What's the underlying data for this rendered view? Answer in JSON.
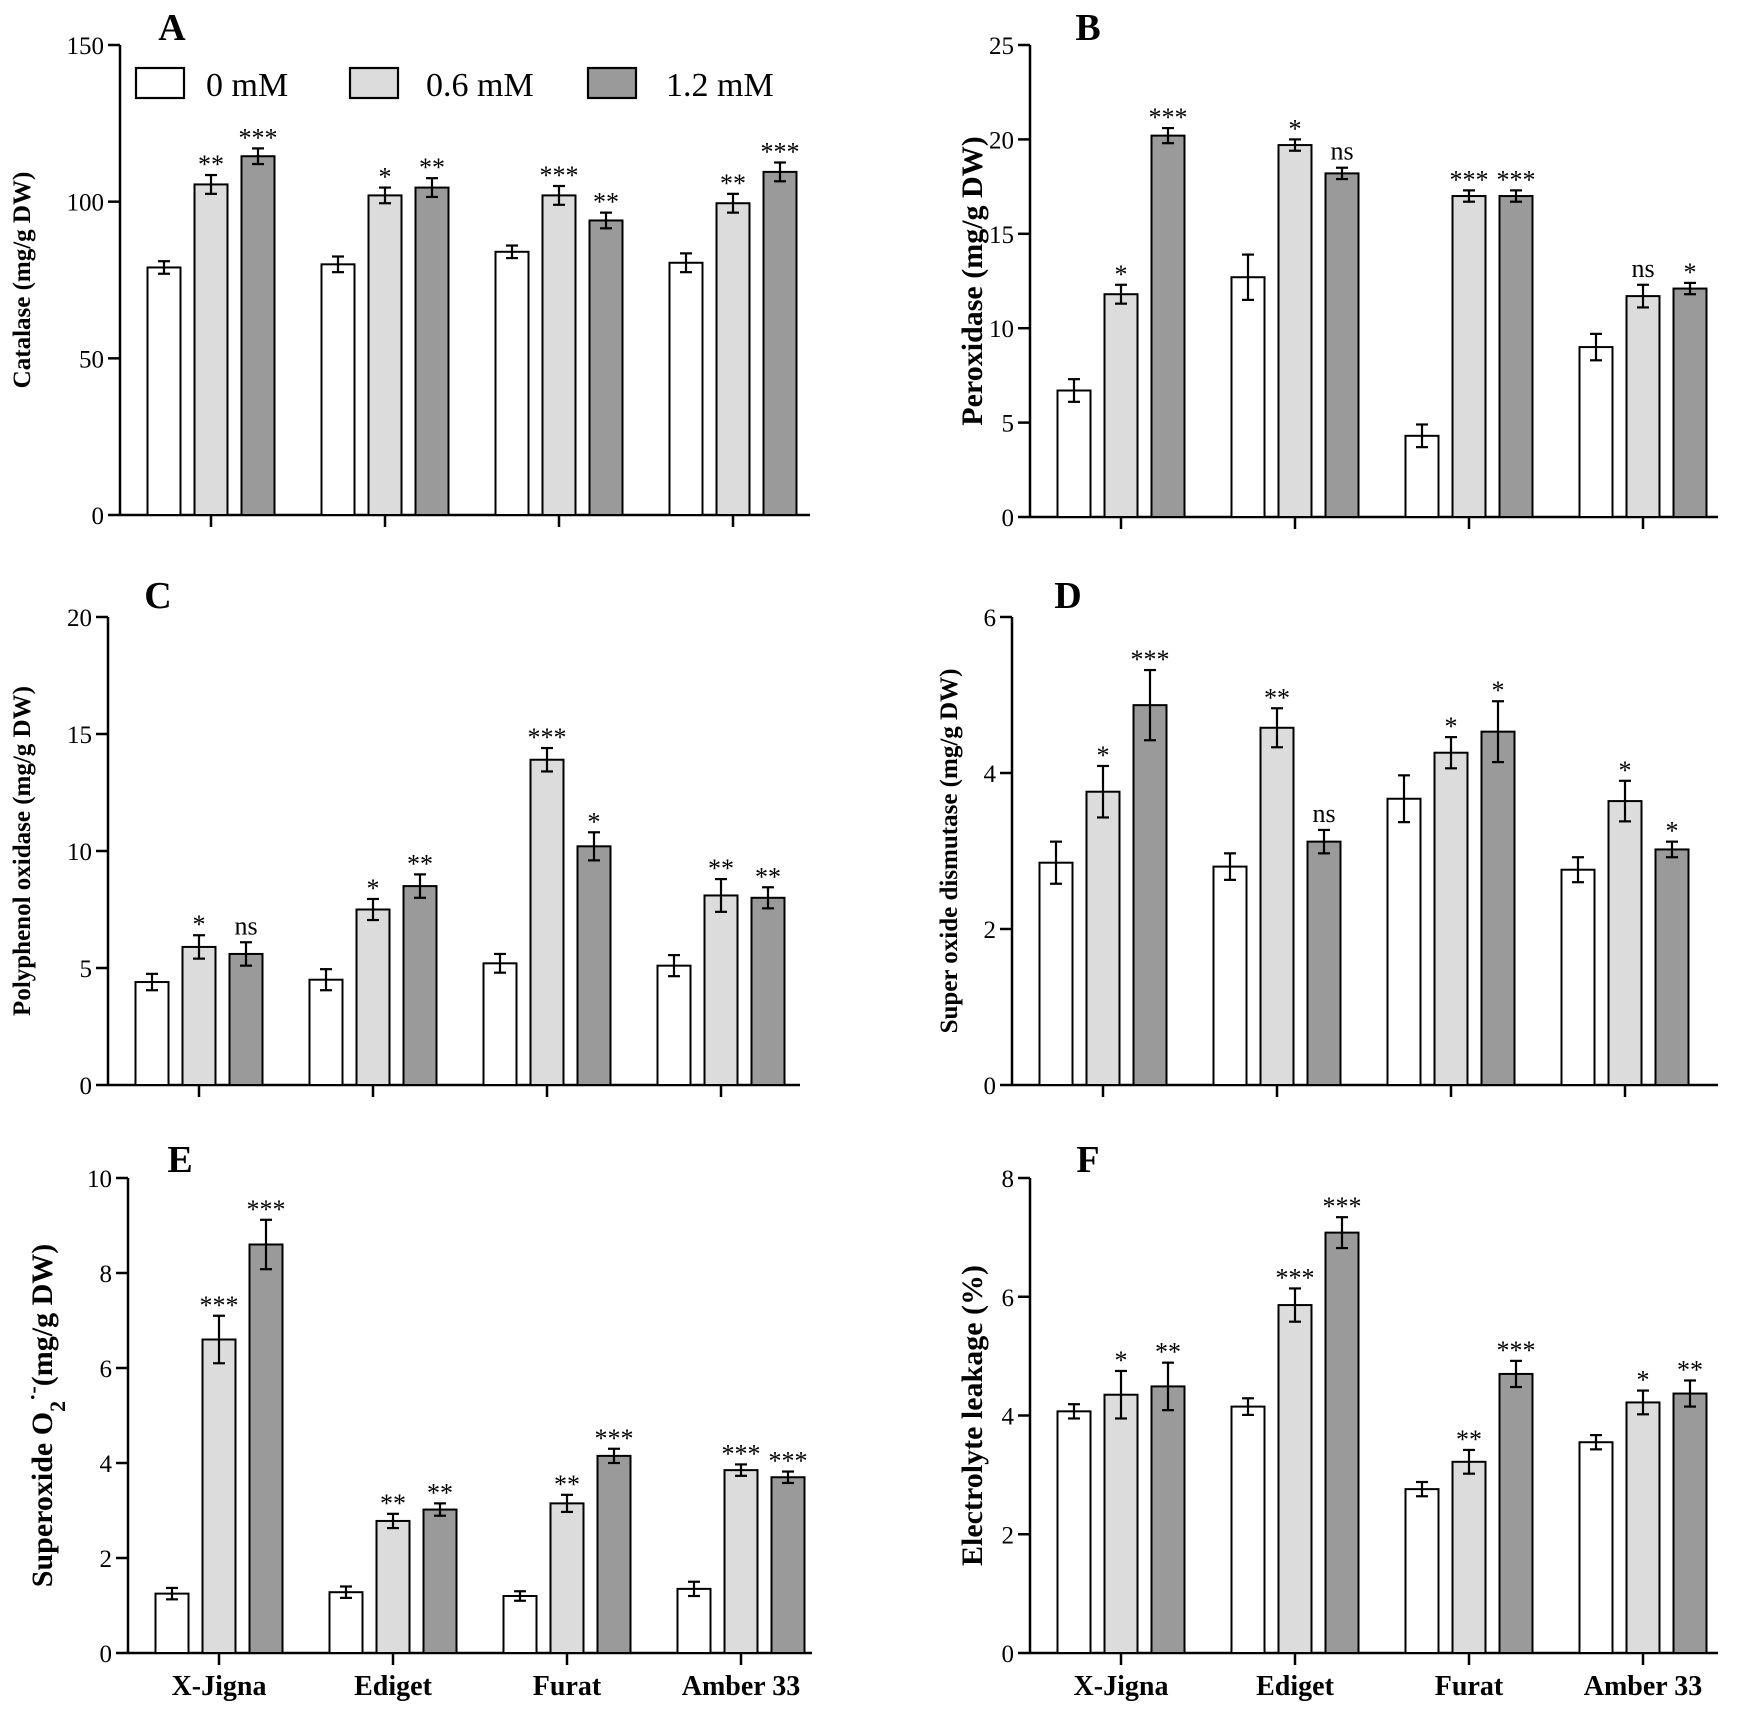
{
  "legend": [
    {
      "label": "0 mM",
      "color": "#ffffff"
    },
    {
      "label": "0.6 mM",
      "color": "#dcdcdc"
    },
    {
      "label": "1.2 mM",
      "color": "#9a9a9a"
    }
  ],
  "chart_data": [
    {
      "type": "bar",
      "panel": "A",
      "ylabel": "Catalase (mg/g DW)",
      "ylim": [
        0,
        150
      ],
      "yticks": [
        0,
        50,
        100,
        150
      ],
      "categories": [
        "X-Jigna",
        "Ediget",
        "Furat",
        "Amber 33"
      ],
      "series": [
        {
          "name": "0 mM",
          "values": [
            79,
            80,
            84,
            80.5
          ],
          "errors": [
            2,
            2.5,
            2,
            3
          ],
          "sig": [
            "",
            "",
            "",
            ""
          ]
        },
        {
          "name": "0.6 mM",
          "values": [
            105.5,
            102,
            102,
            99.5
          ],
          "errors": [
            3,
            2.5,
            3,
            3
          ],
          "sig": [
            "**",
            "*",
            "***",
            "**"
          ]
        },
        {
          "name": "1.2 mM",
          "values": [
            114.5,
            104.5,
            94,
            109.5
          ],
          "errors": [
            2.5,
            3,
            2.5,
            3
          ],
          "sig": [
            "***",
            "**",
            "**",
            "***"
          ]
        }
      ]
    },
    {
      "type": "bar",
      "panel": "B",
      "ylabel": "Peroxidase (mg/g DW)",
      "ylim": [
        0,
        25
      ],
      "yticks": [
        0,
        5,
        10,
        15,
        20,
        25
      ],
      "categories": [
        "X-Jigna",
        "Ediget",
        "Furat",
        "Amber 33"
      ],
      "series": [
        {
          "name": "0 mM",
          "values": [
            6.7,
            12.7,
            4.3,
            9.0
          ],
          "errors": [
            0.6,
            1.2,
            0.6,
            0.7
          ],
          "sig": [
            "",
            "",
            "",
            ""
          ]
        },
        {
          "name": "0.6 mM",
          "values": [
            11.8,
            19.7,
            17.0,
            11.7
          ],
          "errors": [
            0.5,
            0.3,
            0.3,
            0.6
          ],
          "sig": [
            "*",
            "*",
            "***",
            "ns"
          ]
        },
        {
          "name": "1.2 mM",
          "values": [
            20.2,
            18.2,
            17.0,
            12.1
          ],
          "errors": [
            0.4,
            0.3,
            0.3,
            0.3
          ],
          "sig": [
            "***",
            "ns",
            "***",
            "*"
          ]
        }
      ]
    },
    {
      "type": "bar",
      "panel": "C",
      "ylabel": "Polyphenol oxidase (mg/g DW)",
      "ylim": [
        0,
        20
      ],
      "yticks": [
        0,
        5,
        10,
        15,
        20
      ],
      "categories": [
        "X-Jigna",
        "Ediget",
        "Furat",
        "Amber 33"
      ],
      "series": [
        {
          "name": "0 mM",
          "values": [
            4.4,
            4.5,
            5.2,
            5.1
          ],
          "errors": [
            0.35,
            0.45,
            0.4,
            0.45
          ],
          "sig": [
            "",
            "",
            "",
            ""
          ]
        },
        {
          "name": "0.6 mM",
          "values": [
            5.9,
            7.5,
            13.9,
            8.1
          ],
          "errors": [
            0.5,
            0.45,
            0.5,
            0.7
          ],
          "sig": [
            "*",
            "*",
            "***",
            "**"
          ]
        },
        {
          "name": "1.2 mM",
          "values": [
            5.6,
            8.5,
            10.2,
            8.0
          ],
          "errors": [
            0.5,
            0.5,
            0.6,
            0.45
          ],
          "sig": [
            "ns",
            "**",
            "*",
            "**"
          ]
        }
      ]
    },
    {
      "type": "bar",
      "panel": "D",
      "ylabel": "Super oxide dismutase (mg/g DW)",
      "ylim": [
        0,
        6
      ],
      "yticks": [
        0,
        2,
        4,
        6
      ],
      "categories": [
        "X-Jigna",
        "Ediget",
        "Furat",
        "Amber 33"
      ],
      "series": [
        {
          "name": "0 mM",
          "values": [
            2.85,
            2.8,
            3.67,
            2.76
          ],
          "errors": [
            0.27,
            0.17,
            0.3,
            0.16
          ],
          "sig": [
            "",
            "",
            "",
            ""
          ]
        },
        {
          "name": "0.6 mM",
          "values": [
            3.76,
            4.58,
            4.26,
            3.64
          ],
          "errors": [
            0.33,
            0.25,
            0.2,
            0.26
          ],
          "sig": [
            "*",
            "**",
            "*",
            "*"
          ]
        },
        {
          "name": "1.2 mM",
          "values": [
            4.87,
            3.12,
            4.53,
            3.02
          ],
          "errors": [
            0.45,
            0.15,
            0.39,
            0.1
          ],
          "sig": [
            "***",
            "ns",
            "*",
            "*"
          ]
        }
      ]
    },
    {
      "type": "bar",
      "panel": "E",
      "ylabel_main": "Superoxide O",
      "ylabel_sub": "2",
      "ylabel_sup": "·-",
      "ylabel_rest": "(mg/g DW)",
      "ylim": [
        0,
        10
      ],
      "yticks": [
        0,
        2,
        4,
        6,
        8,
        10
      ],
      "categories": [
        "X-Jigna",
        "Ediget",
        "Furat",
        "Amber 33"
      ],
      "series": [
        {
          "name": "0 mM",
          "values": [
            1.25,
            1.28,
            1.2,
            1.35
          ],
          "errors": [
            0.12,
            0.12,
            0.1,
            0.15
          ],
          "sig": [
            "",
            "",
            "",
            ""
          ]
        },
        {
          "name": "0.6 mM",
          "values": [
            6.6,
            2.78,
            3.15,
            3.85
          ],
          "errors": [
            0.5,
            0.15,
            0.18,
            0.12
          ],
          "sig": [
            "***",
            "**",
            "**",
            "***"
          ]
        },
        {
          "name": "1.2 mM",
          "values": [
            8.6,
            3.02,
            4.15,
            3.7
          ],
          "errors": [
            0.52,
            0.13,
            0.15,
            0.12
          ],
          "sig": [
            "***",
            "**",
            "***",
            "***"
          ]
        }
      ]
    },
    {
      "type": "bar",
      "panel": "F",
      "ylabel": "Electrolyte leakage (%)",
      "ylim": [
        0,
        8
      ],
      "yticks": [
        0,
        2,
        4,
        6,
        8
      ],
      "categories": [
        "X-Jigna",
        "Ediget",
        "Furat",
        "Amber 33"
      ],
      "series": [
        {
          "name": "0 mM",
          "values": [
            4.07,
            4.15,
            2.76,
            3.55
          ],
          "errors": [
            0.12,
            0.14,
            0.12,
            0.12
          ],
          "sig": [
            "",
            "",
            "",
            ""
          ]
        },
        {
          "name": "0.6 mM",
          "values": [
            4.35,
            5.86,
            3.22,
            4.22
          ],
          "errors": [
            0.4,
            0.28,
            0.2,
            0.2
          ],
          "sig": [
            "*",
            "***",
            "**",
            "*"
          ]
        },
        {
          "name": "1.2 mM",
          "values": [
            4.49,
            7.08,
            4.7,
            4.37
          ],
          "errors": [
            0.4,
            0.26,
            0.22,
            0.22
          ],
          "sig": [
            "**",
            "***",
            "***",
            "**"
          ]
        }
      ]
    }
  ]
}
